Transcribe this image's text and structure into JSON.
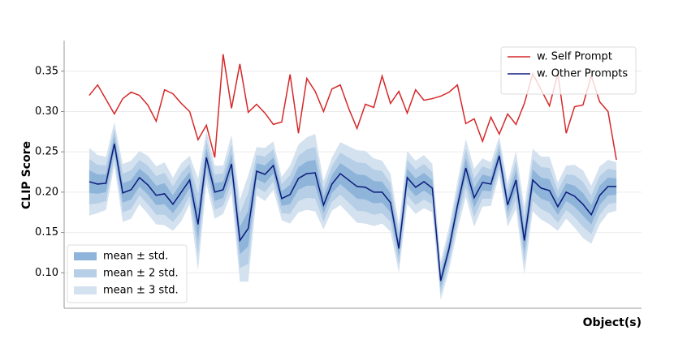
{
  "chart_data": {
    "type": "line",
    "y_label": "CLIP Score",
    "x_label": "Object(s)",
    "x": [
      0,
      1,
      2,
      3,
      4,
      5,
      6,
      7,
      8,
      9,
      10,
      11,
      12,
      13,
      14,
      15,
      16,
      17,
      18,
      19,
      20,
      21,
      22,
      23,
      24,
      25,
      26,
      27,
      28,
      29,
      30,
      31,
      32,
      33,
      34,
      35,
      36,
      37,
      38,
      39,
      40,
      41,
      42,
      43,
      44,
      45,
      46,
      47,
      48,
      49,
      50,
      51,
      52,
      53,
      54,
      55,
      56,
      57,
      58,
      59,
      60,
      61,
      62,
      63
    ],
    "xlim": [
      -3,
      66
    ],
    "ylim": [
      0.056,
      0.388
    ],
    "yticks": [
      {
        "value": 0.1,
        "label": "0.10"
      },
      {
        "value": 0.15,
        "label": "0.15"
      },
      {
        "value": 0.2,
        "label": "0.20"
      },
      {
        "value": 0.25,
        "label": "0.25"
      },
      {
        "value": 0.3,
        "label": "0.30"
      },
      {
        "value": 0.35,
        "label": "0.35"
      }
    ],
    "grid": true,
    "legend": "upper right",
    "series": [
      {
        "name": "w. Self Prompt",
        "color": "#d62728",
        "values": [
          0.32,
          0.333,
          0.315,
          0.297,
          0.316,
          0.324,
          0.32,
          0.308,
          0.288,
          0.327,
          0.322,
          0.31,
          0.3,
          0.265,
          0.283,
          0.243,
          0.371,
          0.304,
          0.359,
          0.299,
          0.309,
          0.298,
          0.284,
          0.287,
          0.346,
          0.273,
          0.341,
          0.325,
          0.3,
          0.328,
          0.333,
          0.304,
          0.279,
          0.309,
          0.305,
          0.344,
          0.31,
          0.325,
          0.298,
          0.327,
          0.314,
          0.316,
          0.319,
          0.324,
          0.333,
          0.285,
          0.291,
          0.263,
          0.293,
          0.272,
          0.297,
          0.284,
          0.31,
          0.347,
          0.327,
          0.307,
          0.347,
          0.273,
          0.306,
          0.308,
          0.344,
          0.312,
          0.3,
          0.24
        ]
      },
      {
        "name": "w. Other Prompts",
        "color": "#0c1a7c",
        "values": [
          0.213,
          0.21,
          0.211,
          0.26,
          0.199,
          0.203,
          0.218,
          0.209,
          0.196,
          0.198,
          0.185,
          0.2,
          0.215,
          0.16,
          0.243,
          0.2,
          0.203,
          0.235,
          0.14,
          0.155,
          0.226,
          0.222,
          0.233,
          0.192,
          0.197,
          0.217,
          0.223,
          0.224,
          0.184,
          0.21,
          0.223,
          0.215,
          0.207,
          0.206,
          0.2,
          0.2,
          0.187,
          0.13,
          0.218,
          0.206,
          0.213,
          0.205,
          0.09,
          0.13,
          0.183,
          0.23,
          0.193,
          0.212,
          0.21,
          0.245,
          0.184,
          0.215,
          0.14,
          0.215,
          0.205,
          0.202,
          0.182,
          0.2,
          0.195,
          0.185,
          0.172,
          0.196,
          0.207,
          0.207
        ],
        "std": [
          0.014,
          0.012,
          0.011,
          0.009,
          0.012,
          0.012,
          0.011,
          0.012,
          0.012,
          0.013,
          0.011,
          0.012,
          0.01,
          0.019,
          0.011,
          0.011,
          0.01,
          0.012,
          0.017,
          0.022,
          0.01,
          0.011,
          0.01,
          0.009,
          0.012,
          0.014,
          0.015,
          0.016,
          0.01,
          0.011,
          0.013,
          0.014,
          0.015,
          0.015,
          0.014,
          0.013,
          0.012,
          0.01,
          0.011,
          0.011,
          0.011,
          0.01,
          0.008,
          0.009,
          0.01,
          0.012,
          0.012,
          0.01,
          0.009,
          0.008,
          0.009,
          0.012,
          0.014,
          0.013,
          0.013,
          0.014,
          0.01,
          0.011,
          0.013,
          0.014,
          0.012,
          0.012,
          0.011,
          0.01
        ]
      }
    ],
    "bands": [
      {
        "label": "mean ± std.",
        "color": "#8eb4d9"
      },
      {
        "label": "mean ± 2 std.",
        "color": "#b6cee6"
      },
      {
        "label": "mean ± 3 std.",
        "color": "#d4e2f0"
      }
    ]
  }
}
